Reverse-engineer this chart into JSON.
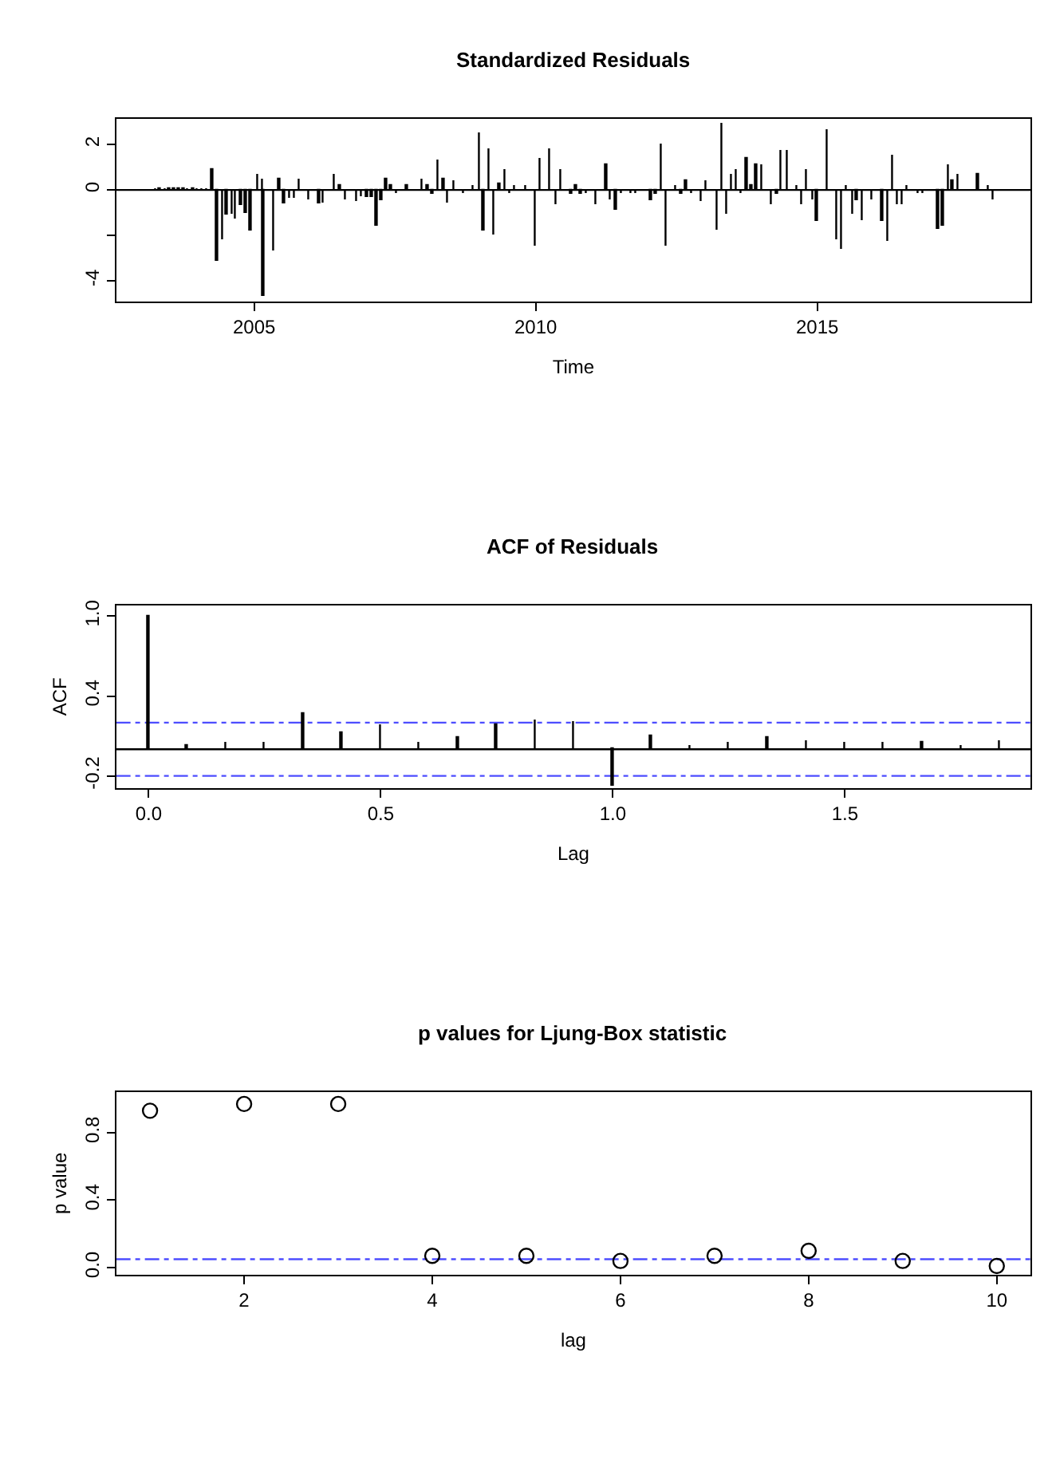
{
  "chart_data": [
    {
      "type": "bar",
      "title": "Standardized Residuals",
      "xlabel": "Time",
      "color": "#000000",
      "x": [
        2003.25,
        2003.33,
        2003.42,
        2003.5,
        2003.58,
        2003.67,
        2003.75,
        2003.83,
        2003.92,
        2004.0,
        2004.08,
        2004.17,
        2004.26,
        2004.35,
        2004.44,
        2004.52,
        2004.61,
        2004.68,
        2004.77,
        2004.86,
        2004.94,
        2005.08,
        2005.16,
        2005.17,
        2005.35,
        2005.45,
        2005.54,
        2005.63,
        2005.72,
        2005.81,
        2005.98,
        2006.16,
        2006.24,
        2006.43,
        2006.53,
        2006.63,
        2006.82,
        2006.91,
        2007.01,
        2007.1,
        2007.18,
        2007.27,
        2007.35,
        2007.44,
        2007.53,
        2007.72,
        2007.99,
        2008.09,
        2008.17,
        2008.27,
        2008.37,
        2008.45,
        2008.55,
        2008.73,
        2008.9,
        2009.0,
        2009.08,
        2009.18,
        2009.27,
        2009.36,
        2009.46,
        2009.54,
        2009.64,
        2009.82,
        2010.0,
        2010.09,
        2010.26,
        2010.36,
        2010.45,
        2010.64,
        2010.72,
        2010.81,
        2010.9,
        2011.08,
        2011.26,
        2011.34,
        2011.43,
        2011.52,
        2011.7,
        2011.78,
        2012.05,
        2012.14,
        2012.23,
        2012.33,
        2012.5,
        2012.59,
        2012.68,
        2012.77,
        2012.94,
        2013.04,
        2013.22,
        2013.31,
        2013.4,
        2013.48,
        2013.57,
        2013.66,
        2013.75,
        2013.84,
        2013.92,
        2014.02,
        2014.19,
        2014.29,
        2014.37,
        2014.47,
        2014.64,
        2014.74,
        2014.82,
        2014.92,
        2015.0,
        2015.19,
        2015.36,
        2015.44,
        2015.53,
        2015.63,
        2015.71,
        2015.8,
        2015.98,
        2016.16,
        2016.26,
        2016.34,
        2016.44,
        2016.52,
        2016.61,
        2016.79,
        2016.88,
        2017.15,
        2017.24,
        2017.33,
        2017.41,
        2017.51,
        2017.86,
        2018.04,
        2018.12
      ],
      "values": [
        0.05,
        0.05,
        0.05,
        0.05,
        0.05,
        0.05,
        0.05,
        0.05,
        0.05,
        0.05,
        0.05,
        0.05,
        0.9,
        -3.1,
        -2.2,
        -1.1,
        -1.1,
        -1.3,
        -0.7,
        -1.0,
        -1.8,
        0.7,
        0.45,
        -4.7,
        -2.7,
        0.45,
        -0.6,
        -0.4,
        -0.4,
        0.45,
        -0.45,
        -0.6,
        -0.6,
        0.7,
        0.2,
        -0.45,
        -0.5,
        -0.3,
        -0.3,
        -0.3,
        -1.6,
        -0.45,
        0.45,
        0.2,
        -0.2,
        0.2,
        0.45,
        0.2,
        -0.2,
        1.3,
        0.45,
        -0.6,
        0.4,
        -0.2,
        0.2,
        2.5,
        -1.8,
        1.8,
        -2.0,
        0.25,
        0.9,
        -0.2,
        0.2,
        0.2,
        -2.5,
        1.35,
        1.8,
        -0.65,
        0.9,
        -0.2,
        0.2,
        -0.2,
        -0.2,
        -0.65,
        1.1,
        -0.45,
        -0.9,
        -0.2,
        -0.2,
        -0.2,
        -0.45,
        -0.2,
        2.0,
        -2.5,
        0.2,
        -0.2,
        0.4,
        -0.2,
        -0.5,
        0.4,
        -1.8,
        2.9,
        -1.1,
        0.65,
        0.9,
        -0.2,
        1.35,
        0.2,
        1.1,
        1.1,
        -0.65,
        -0.2,
        1.75,
        1.75,
        0.2,
        -0.65,
        0.9,
        -0.45,
        -1.35,
        2.65,
        -2.2,
        -2.65,
        0.2,
        -1.1,
        -0.45,
        -1.35,
        -0.45,
        -1.35,
        -2.25,
        1.5,
        -0.65,
        -0.65,
        0.2,
        -0.2,
        -0.2,
        -1.75,
        -1.6,
        1.1,
        0.4,
        0.65,
        0.65,
        0.2,
        -0.45
      ],
      "xlim": [
        2002.55,
        2018.79
      ],
      "xticks": [
        2005,
        2010,
        2015
      ],
      "ylim": [
        -4.9,
        3.13
      ],
      "yticks": [
        2,
        0,
        {
          "value": -2,
          "label": null
        },
        -4
      ],
      "ref_lines": [
        {
          "axis": "y",
          "value": 0,
          "color": "#000000",
          "line_style": "solid"
        }
      ]
    },
    {
      "type": "bar",
      "title": "ACF of Residuals",
      "xlabel": "Lag",
      "ylabel": "ACF",
      "color": "#000000",
      "x": [
        0,
        0.0833,
        0.1667,
        0.25,
        0.3333,
        0.4167,
        0.5,
        0.5833,
        0.6667,
        0.75,
        0.8333,
        0.9167,
        1.0,
        1.0833,
        1.1667,
        1.25,
        1.3333,
        1.4167,
        1.5,
        1.5833,
        1.6667,
        1.75,
        1.8333
      ],
      "values": [
        1.0,
        0.02,
        0.05,
        0.05,
        0.27,
        0.12,
        0.18,
        0.05,
        0.08,
        0.18,
        0.22,
        0.2,
        -0.28,
        0.1,
        0.02,
        0.05,
        0.08,
        0.06,
        0.05,
        0.05,
        0.05,
        0.03,
        0.06
      ],
      "xlim": [
        -0.07,
        1.9
      ],
      "xticks": [
        {
          "value": 0,
          "label": "0.0"
        },
        0.5,
        {
          "value": 1,
          "label": "1.0"
        },
        1.5
      ],
      "ylim": [
        -0.29,
        1.08
      ],
      "yticks": [
        -0.2,
        0.4,
        {
          "value": 1,
          "label": "1.0"
        }
      ],
      "ref_lines": [
        {
          "axis": "y",
          "value": 0,
          "color": "#000000",
          "line_style": "solid"
        },
        {
          "axis": "y",
          "value": 0.2,
          "color": "#4d4dff",
          "line_style": "dashed"
        },
        {
          "axis": "y",
          "value": -0.2,
          "color": "#4d4dff",
          "line_style": "dashed"
        }
      ]
    },
    {
      "type": "scatter",
      "title": "p values for Ljung-Box statistic",
      "xlabel": "lag",
      "ylabel": "p value",
      "color": "#000000",
      "marker": "circle",
      "x": [
        1,
        2,
        3,
        4,
        5,
        6,
        7,
        8,
        9,
        10
      ],
      "values": [
        0.93,
        0.97,
        0.97,
        0.07,
        0.07,
        0.04,
        0.07,
        0.1,
        0.04,
        0.01
      ],
      "xlim": [
        0.64,
        10.36
      ],
      "xticks": [
        2,
        4,
        6,
        8,
        10
      ],
      "ylim": [
        -0.04,
        1.04
      ],
      "yticks": [
        {
          "value": 0,
          "label": "0.0"
        },
        0.4,
        0.8
      ],
      "ref_lines": [
        {
          "axis": "y",
          "value": 0.05,
          "color": "#4d4dff",
          "line_style": "dashed"
        }
      ]
    }
  ]
}
